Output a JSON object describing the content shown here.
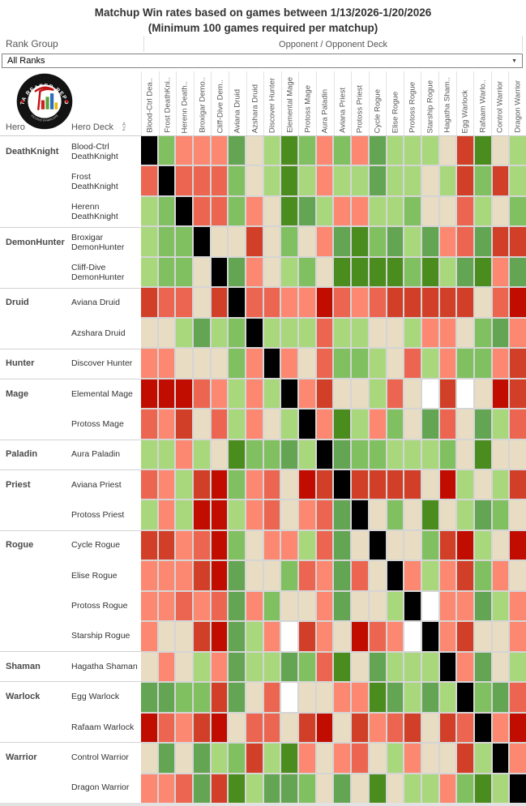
{
  "title": {
    "line1": "Matchup Win rates based on games between 1/13/2026-1/20/2026",
    "line2": "(Minimum 100 games required per matchup)"
  },
  "filters": {
    "rank_group_label": "Rank Group",
    "rank_group_value": "All Ranks"
  },
  "header": {
    "opponent_label": "Opponent / Opponent Deck",
    "hero_label": "Hero",
    "hero_deck_label": "Hero Deck",
    "sort_icon_top": "A",
    "sort_icon_bottom": "Z"
  },
  "logo": {
    "ring_text": "DATA REAPER REPORT",
    "bottom_text": "VICIOUS SYNDICATE"
  },
  "palette": {
    "K": "#000000",
    "W": "#ffffff",
    "r4": "#c00d00",
    "r3": "#d23f28",
    "r2": "#ec6550",
    "r1": "#fc8872",
    "t": "#e8dcc2",
    "g1": "#a9d87c",
    "g2": "#80c060",
    "g3": "#63a553",
    "g4": "#4a8c1e"
  },
  "palette_meaning": {
    "K": "mirror matchup (self)",
    "W": "no data (below minimum games)",
    "r4": "heavily unfavored",
    "r3": "unfavored",
    "r2": "moderately unfavored",
    "r1": "slightly unfavored",
    "t": "even matchup",
    "g1": "slightly favored",
    "g2": "moderately favored",
    "g3": "favored",
    "g4": "heavily favored"
  },
  "chart_data": {
    "type": "heatmap",
    "x_axis": "Opponent / Opponent Deck",
    "y_axis": "Hero / Hero Deck",
    "legend_position": "none",
    "grid": true,
    "columns": [
      "Blood-Ctrl Dea..",
      "Frost DeathKni..",
      "Herenn Death..",
      "Broxigar Demo..",
      "Cliff-Dive Dem..",
      "Aviana Druid",
      "Azshara Druid",
      "Discover Hunter",
      "Elemental Mage",
      "Protoss Mage",
      "Aura Paladin",
      "Aviana Priest",
      "Protoss Priest",
      "Cycle Rogue",
      "Elise Rogue",
      "Protoss Rogue",
      "Starship Rogue",
      "Hagatha Sham..",
      "Egg Warlock",
      "Rafaam Warlo..",
      "Control Warrior",
      "Dragon Warrior"
    ],
    "rows": [
      {
        "hero": "DeathKnight",
        "deck": "Blood-Ctrl DeathKnight",
        "cells": [
          "K",
          "g2",
          "r1",
          "r1",
          "r1",
          "g3",
          "t",
          "g1",
          "g4",
          "g2",
          "r1",
          "g2",
          "r1",
          "g3",
          "g1",
          "g1",
          "g1",
          "t",
          "r3",
          "g4",
          "t",
          "g1"
        ]
      },
      {
        "hero": "",
        "deck": "Frost DeathKnight",
        "cells": [
          "r2",
          "K",
          "r2",
          "r2",
          "r2",
          "g2",
          "t",
          "g1",
          "g4",
          "g1",
          "r1",
          "g1",
          "g1",
          "g3",
          "g1",
          "g1",
          "t",
          "g1",
          "r3",
          "g2",
          "r3",
          "g1"
        ]
      },
      {
        "hero": "",
        "deck": "Herenn DeathKnight",
        "cells": [
          "g1",
          "g2",
          "K",
          "r2",
          "r2",
          "g2",
          "r1",
          "t",
          "g4",
          "g3",
          "g1",
          "r1",
          "r1",
          "g1",
          "g1",
          "g2",
          "t",
          "t",
          "r2",
          "g1",
          "t",
          "g2"
        ]
      },
      {
        "hero": "DemonHunter",
        "deck": "Broxigar DemonHunter",
        "cells": [
          "g1",
          "g2",
          "g2",
          "K",
          "t",
          "t",
          "r3",
          "t",
          "g2",
          "t",
          "r1",
          "g3",
          "g4",
          "g2",
          "g3",
          "g1",
          "g3",
          "r1",
          "r2",
          "g3",
          "r3",
          "r3"
        ]
      },
      {
        "hero": "",
        "deck": "Cliff-Dive DemonHunter",
        "cells": [
          "g1",
          "g2",
          "g2",
          "t",
          "K",
          "g3",
          "r1",
          "t",
          "g1",
          "g2",
          "t",
          "g4",
          "g4",
          "g4",
          "g4",
          "g2",
          "g4",
          "g1",
          "g3",
          "g4",
          "r1",
          "g3"
        ]
      },
      {
        "hero": "Druid",
        "deck": "Aviana Druid",
        "cells": [
          "r3",
          "r2",
          "r2",
          "t",
          "r3",
          "K",
          "r2",
          "r2",
          "r1",
          "r1",
          "r4",
          "r2",
          "r1",
          "r2",
          "r3",
          "r3",
          "r3",
          "r3",
          "r3",
          "t",
          "r2",
          "r4"
        ]
      },
      {
        "hero": "",
        "deck": "Azshara Druid",
        "cells": [
          "t",
          "t",
          "g1",
          "g3",
          "g1",
          "g2",
          "K",
          "g1",
          "g1",
          "g1",
          "r2",
          "g1",
          "g1",
          "t",
          "t",
          "g1",
          "r1",
          "r1",
          "t",
          "g2",
          "g3",
          "r1"
        ]
      },
      {
        "hero": "Hunter",
        "deck": "Discover Hunter",
        "cells": [
          "r1",
          "r1",
          "t",
          "t",
          "t",
          "g2",
          "r1",
          "K",
          "r1",
          "t",
          "r2",
          "g2",
          "g2",
          "g1",
          "t",
          "r2",
          "g1",
          "r1",
          "g2",
          "g2",
          "r1",
          "r3"
        ]
      },
      {
        "hero": "Mage",
        "deck": "Elemental Mage",
        "cells": [
          "r4",
          "r4",
          "r4",
          "r2",
          "r1",
          "g1",
          "r1",
          "g1",
          "K",
          "r1",
          "r3",
          "t",
          "t",
          "g1",
          "r2",
          "t",
          "W",
          "r3",
          "W",
          "t",
          "r4",
          "r3"
        ]
      },
      {
        "hero": "",
        "deck": "Protoss Mage",
        "cells": [
          "r2",
          "r1",
          "r3",
          "t",
          "r2",
          "g1",
          "r1",
          "t",
          "g1",
          "K",
          "r1",
          "g4",
          "g1",
          "r1",
          "g2",
          "t",
          "g3",
          "r2",
          "t",
          "g3",
          "g1",
          "r2"
        ]
      },
      {
        "hero": "Paladin",
        "deck": "Aura Paladin",
        "cells": [
          "g1",
          "g1",
          "r1",
          "g1",
          "t",
          "g4",
          "g2",
          "g2",
          "g3",
          "g1",
          "K",
          "g3",
          "g2",
          "g2",
          "g1",
          "g1",
          "g1",
          "g2",
          "t",
          "g4",
          "t",
          "t"
        ]
      },
      {
        "hero": "Priest",
        "deck": "Aviana Priest",
        "cells": [
          "r2",
          "r1",
          "g1",
          "r3",
          "r4",
          "g2",
          "r1",
          "r2",
          "t",
          "r4",
          "r3",
          "K",
          "r3",
          "r3",
          "r3",
          "r3",
          "t",
          "r4",
          "g1",
          "t",
          "g1",
          "r3"
        ]
      },
      {
        "hero": "",
        "deck": "Protoss Priest",
        "cells": [
          "g1",
          "r1",
          "g1",
          "r4",
          "r4",
          "g1",
          "r1",
          "r2",
          "t",
          "r1",
          "r2",
          "g3",
          "K",
          "t",
          "g2",
          "t",
          "g4",
          "t",
          "g1",
          "g3",
          "g2",
          "t"
        ]
      },
      {
        "hero": "Rogue",
        "deck": "Cycle Rogue",
        "cells": [
          "r3",
          "r3",
          "r1",
          "r2",
          "r4",
          "g2",
          "t",
          "r1",
          "r1",
          "g1",
          "r2",
          "g3",
          "t",
          "K",
          "t",
          "t",
          "g2",
          "r3",
          "r4",
          "g1",
          "t",
          "r4"
        ]
      },
      {
        "hero": "",
        "deck": "Elise Rogue",
        "cells": [
          "r1",
          "r1",
          "r1",
          "r3",
          "r4",
          "g3",
          "t",
          "t",
          "g2",
          "r2",
          "r1",
          "g3",
          "r2",
          "t",
          "K",
          "r1",
          "g1",
          "r1",
          "r3",
          "g2",
          "r1",
          "t"
        ]
      },
      {
        "hero": "",
        "deck": "Protoss Rogue",
        "cells": [
          "r1",
          "r1",
          "r2",
          "r1",
          "r2",
          "g3",
          "r1",
          "g2",
          "t",
          "t",
          "r1",
          "g3",
          "t",
          "t",
          "g1",
          "K",
          "W",
          "r1",
          "r1",
          "g3",
          "g1",
          "r1"
        ]
      },
      {
        "hero": "",
        "deck": "Starship Rogue",
        "cells": [
          "r1",
          "t",
          "t",
          "r3",
          "r4",
          "g3",
          "g1",
          "r1",
          "W",
          "r3",
          "r1",
          "t",
          "r4",
          "r2",
          "r1",
          "W",
          "K",
          "r1",
          "r3",
          "t",
          "t",
          "r1"
        ]
      },
      {
        "hero": "Shaman",
        "deck": "Hagatha Shaman",
        "cells": [
          "t",
          "r1",
          "t",
          "g1",
          "r1",
          "g3",
          "g1",
          "g1",
          "g3",
          "g2",
          "r2",
          "g4",
          "t",
          "g3",
          "g1",
          "g1",
          "g1",
          "K",
          "r1",
          "g3",
          "t",
          "g1"
        ]
      },
      {
        "hero": "Warlock",
        "deck": "Egg Warlock",
        "cells": [
          "g3",
          "g3",
          "g2",
          "g2",
          "r3",
          "g3",
          "t",
          "r2",
          "W",
          "t",
          "t",
          "r1",
          "r1",
          "g4",
          "g3",
          "g1",
          "g3",
          "g1",
          "K",
          "g2",
          "g3",
          "r2"
        ]
      },
      {
        "hero": "",
        "deck": "Rafaam Warlock",
        "cells": [
          "r4",
          "r2",
          "r1",
          "r3",
          "r4",
          "t",
          "r2",
          "r2",
          "t",
          "r3",
          "r4",
          "t",
          "r3",
          "r1",
          "r2",
          "r3",
          "t",
          "r3",
          "r2",
          "K",
          "r1",
          "r4"
        ]
      },
      {
        "hero": "Warrior",
        "deck": "Control Warrior",
        "cells": [
          "t",
          "g3",
          "t",
          "g3",
          "g1",
          "g2",
          "r3",
          "g1",
          "g4",
          "r1",
          "t",
          "r1",
          "r2",
          "t",
          "g1",
          "r1",
          "t",
          "t",
          "r3",
          "g1",
          "K",
          "r1"
        ]
      },
      {
        "hero": "",
        "deck": "Dragon Warrior",
        "cells": [
          "r1",
          "r1",
          "r2",
          "g3",
          "r3",
          "g4",
          "g1",
          "g3",
          "g3",
          "g2",
          "t",
          "g3",
          "t",
          "g4",
          "t",
          "g1",
          "g1",
          "r1",
          "g2",
          "g4",
          "g1",
          "K"
        ]
      }
    ]
  }
}
